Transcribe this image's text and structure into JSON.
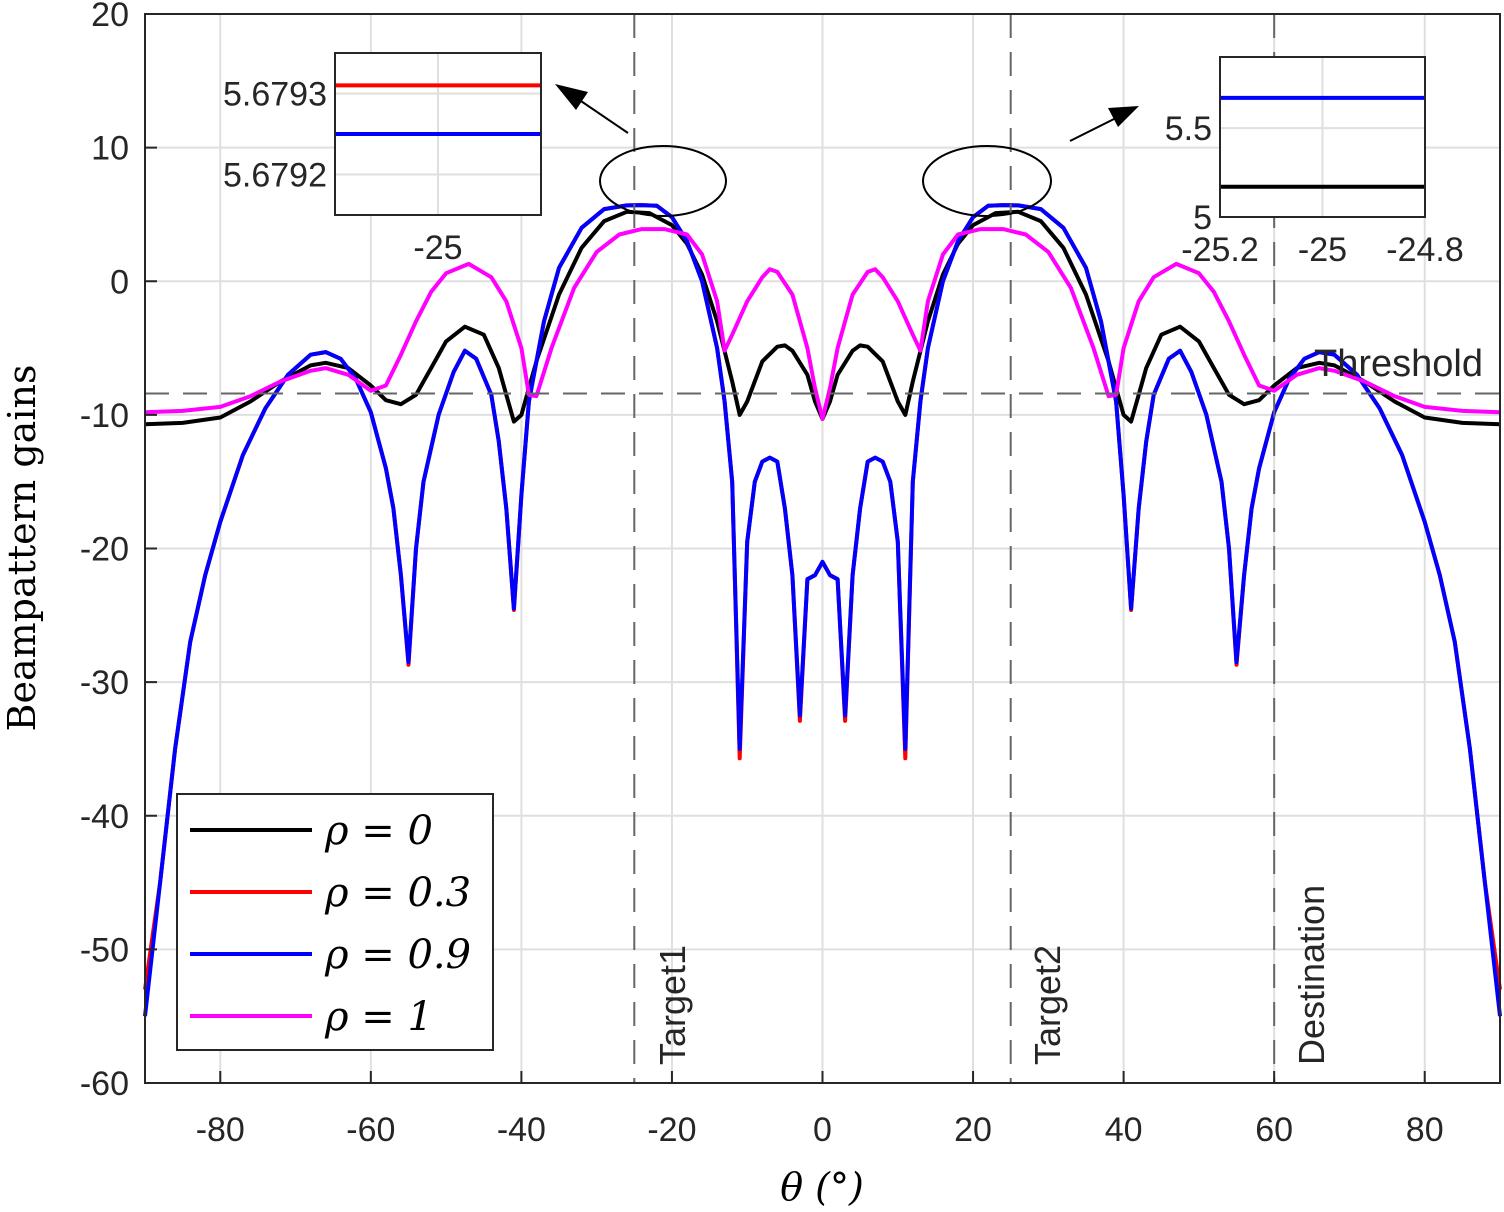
{
  "chart_data": {
    "type": "line",
    "xlabel": "θ (°)",
    "ylabel": "Beampattern gains",
    "xlim": [
      -90,
      90
    ],
    "ylim": [
      -60,
      20
    ],
    "xticks": [
      -80,
      -60,
      -40,
      -20,
      0,
      20,
      40,
      60,
      80
    ],
    "yticks": [
      20,
      10,
      0,
      -10,
      -20,
      -30,
      -40,
      -50,
      -60
    ],
    "grid": true,
    "legend_placement": "bottom-left",
    "symmetric_about_zero": true,
    "series": [
      {
        "name": "ρ = 0",
        "color": "#000000",
        "x": [
          -90,
          -85,
          -80,
          -76,
          -72,
          -68,
          -66,
          -63,
          -60,
          -58,
          -56,
          -54,
          -52,
          -50,
          -47.5,
          -45,
          -43,
          -42,
          -41,
          -40,
          -38,
          -35,
          -32,
          -29,
          -26,
          -23,
          -20,
          -18,
          -16,
          -14,
          -12,
          -11,
          -10,
          -8,
          -6,
          -5,
          -4,
          -2,
          -1,
          0
        ],
        "y": [
          -10.7,
          -10.6,
          -10.2,
          -9,
          -7.5,
          -6.3,
          -6.1,
          -6.5,
          -7.8,
          -8.9,
          -9.2,
          -8.5,
          -6.5,
          -4.5,
          -3.4,
          -4,
          -6.5,
          -8.5,
          -10.5,
          -10,
          -6,
          -1,
          2.5,
          4.5,
          5.2,
          5.1,
          4.2,
          2.8,
          0.5,
          -3,
          -7.5,
          -10,
          -9,
          -6,
          -4.9,
          -4.8,
          -5.2,
          -7,
          -9,
          -10.3
        ]
      },
      {
        "name": "ρ = 0.3",
        "color": "#ff0000",
        "x": [
          -90,
          -88,
          -86,
          -84,
          -82,
          -80,
          -77,
          -74,
          -71,
          -68,
          -66,
          -64,
          -62,
          -60,
          -58,
          -57,
          -56,
          -55,
          -54,
          -53,
          -51,
          -49,
          -47.5,
          -46,
          -44,
          -43,
          -42,
          -41,
          -40,
          -39,
          -37,
          -35,
          -32,
          -29,
          -26,
          -24,
          -22,
          -20,
          -18,
          -16,
          -14,
          -13,
          -12,
          -11,
          -10,
          -9,
          -8,
          -7,
          -6,
          -5,
          -4,
          -3,
          -2,
          -1,
          0
        ],
        "y": [
          -53,
          -45,
          -35,
          -27,
          -22,
          -18,
          -13,
          -9.5,
          -7,
          -5.5,
          -5.3,
          -5.8,
          -7.3,
          -9.8,
          -14,
          -17,
          -22,
          -28.7,
          -20,
          -15,
          -10,
          -6.8,
          -5.2,
          -5.8,
          -8.5,
          -12,
          -17,
          -24.6,
          -16,
          -9,
          -3,
          1,
          4,
          5.4,
          5.679,
          5.7,
          5.65,
          4.8,
          3,
          0,
          -5,
          -9,
          -15,
          -35.7,
          -19.5,
          -15,
          -13.5,
          -13.2,
          -13.5,
          -17,
          -22,
          -32.9,
          -22.3,
          -22,
          -21
        ]
      },
      {
        "name": "ρ = 0.9",
        "color": "#0000ff",
        "x": [
          -90,
          -88,
          -86,
          -84,
          -82,
          -80,
          -77,
          -74,
          -71,
          -68,
          -66,
          -64,
          -62,
          -60,
          -58,
          -57,
          -56,
          -55,
          -54,
          -53,
          -51,
          -49,
          -47.5,
          -46,
          -44,
          -43,
          -42,
          -41,
          -40,
          -39,
          -37,
          -35,
          -32,
          -29,
          -26,
          -24,
          -22,
          -20,
          -18,
          -16,
          -14,
          -13,
          -12,
          -11,
          -10,
          -9,
          -8,
          -7,
          -6,
          -5,
          -4,
          -3,
          -2,
          -1,
          0
        ],
        "y": [
          -55,
          -45,
          -35,
          -27,
          -22,
          -18,
          -13,
          -9.5,
          -7,
          -5.5,
          -5.3,
          -5.8,
          -7.3,
          -9.8,
          -14,
          -17,
          -22,
          -28.5,
          -20,
          -15,
          -10,
          -6.8,
          -5.2,
          -5.8,
          -8.5,
          -12,
          -17,
          -24.5,
          -16,
          -9,
          -3,
          1,
          4,
          5.4,
          5.679,
          5.7,
          5.65,
          4.8,
          3,
          0,
          -5,
          -9,
          -15,
          -35,
          -19.5,
          -15,
          -13.5,
          -13.2,
          -13.5,
          -17,
          -22,
          -32.5,
          -22.3,
          -22,
          -21
        ]
      },
      {
        "name": "ρ = 1",
        "color": "#ff00ff",
        "x": [
          -90,
          -85,
          -80,
          -76,
          -72,
          -68,
          -66,
          -63,
          -60,
          -58,
          -56,
          -54,
          -52,
          -50,
          -47,
          -44,
          -42,
          -40,
          -39,
          -38,
          -36,
          -33,
          -30,
          -27,
          -24,
          -21,
          -18,
          -16,
          -14,
          -13,
          -12,
          -10,
          -8,
          -7,
          -6,
          -4,
          -2,
          -1,
          0
        ],
        "y": [
          -9.8,
          -9.7,
          -9.4,
          -8.6,
          -7.5,
          -6.7,
          -6.5,
          -7,
          -8.2,
          -7.8,
          -5.5,
          -3,
          -0.8,
          0.6,
          1.3,
          0.3,
          -1.5,
          -5,
          -8.5,
          -8.6,
          -5,
          -0.5,
          2.2,
          3.5,
          3.9,
          3.9,
          3.5,
          2,
          -1.5,
          -5.2,
          -4,
          -1.5,
          0.3,
          0.9,
          0.7,
          -1,
          -5,
          -8,
          -10.3
        ]
      }
    ],
    "reference_lines": {
      "threshold": {
        "label": "Threshold",
        "y": -8.4
      },
      "verticals": [
        {
          "label": "Target1",
          "x": -25
        },
        {
          "label": "Target2",
          "x": 25
        },
        {
          "label": "Destination",
          "x": 60
        }
      ]
    },
    "insets": [
      {
        "name": "left-inset",
        "xlim": [
          -25.2,
          -24.8
        ],
        "ylim": [
          5.67915,
          5.67935
        ],
        "xticks": [
          "-25"
        ],
        "yticks": [
          "5.6793",
          "5.6792"
        ],
        "ytick_values": [
          5.6793,
          5.6792
        ],
        "lines": [
          {
            "color": "#ff0000",
            "y": 5.67931
          },
          {
            "color": "#0000ff",
            "y": 5.67925
          }
        ]
      },
      {
        "name": "right-inset",
        "xlim": [
          -25.2,
          -24.8
        ],
        "ylim": [
          5,
          5.9
        ],
        "xticks": [
          "-25.2",
          "-25",
          "-24.8"
        ],
        "yticks": [
          "5.5",
          "5"
        ],
        "ytick_values": [
          5.5,
          5
        ],
        "lines": [
          {
            "color": "#0000ff",
            "y": 5.67
          },
          {
            "color": "#000000",
            "y": 5.17
          }
        ]
      }
    ]
  }
}
